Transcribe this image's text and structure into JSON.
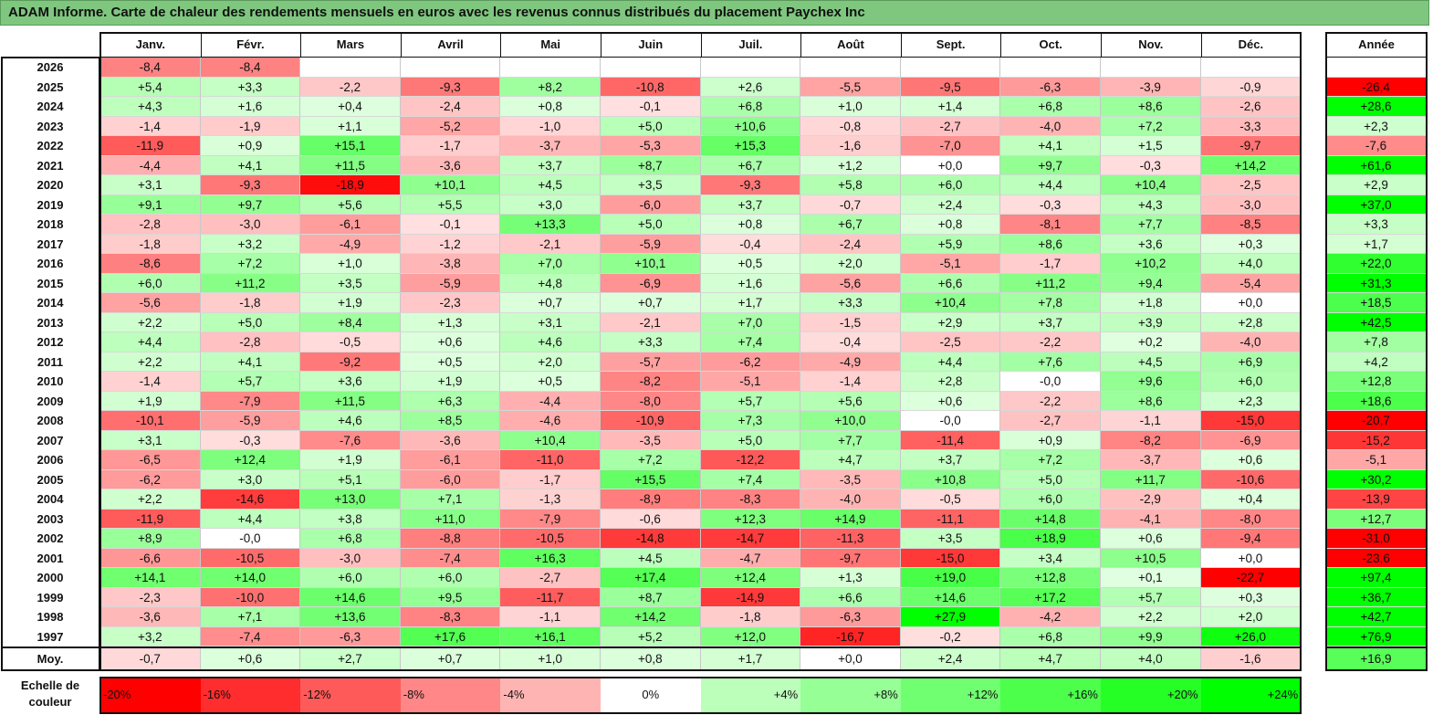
{
  "title": "ADAM Informe. Carte de chaleur des rendements mensuels en euros avec les revenus connus distribués du placement Paychex Inc",
  "colors": {
    "title_bg": "#7fc77f",
    "negative_max": "#ff0000",
    "positive_max": "#00ff00",
    "neutral": "#ffffff"
  },
  "chart_data": {
    "type": "heatmap",
    "title": "ADAM Informe. Carte de chaleur des rendements mensuels en euros avec les revenus connus distribués du placement Paychex Inc",
    "columns": [
      "Janv.",
      "Févr.",
      "Mars",
      "Avril",
      "Mai",
      "Juin",
      "Juil.",
      "Août",
      "Sept.",
      "Oct.",
      "Nov.",
      "Déc."
    ],
    "year_header": "Année",
    "rows": [
      {
        "year": "2026",
        "months": [
          "-8,4",
          "-8,4",
          "",
          "",
          "",
          "",
          "",
          "",
          "",
          "",
          "",
          ""
        ],
        "total": ""
      },
      {
        "year": "2025",
        "months": [
          "+5,4",
          "+3,3",
          "-2,2",
          "-9,3",
          "+8,2",
          "-10,8",
          "+2,6",
          "-5,5",
          "-9,5",
          "-6,3",
          "-3,9",
          "-0,9"
        ],
        "total": "-26,4"
      },
      {
        "year": "2024",
        "months": [
          "+4,3",
          "+1,6",
          "+0,4",
          "-2,4",
          "+0,8",
          "-0,1",
          "+6,8",
          "+1,0",
          "+1,4",
          "+6,8",
          "+8,6",
          "-2,6"
        ],
        "total": "+28,6"
      },
      {
        "year": "2023",
        "months": [
          "-1,4",
          "-1,9",
          "+1,1",
          "-5,2",
          "-1,0",
          "+5,0",
          "+10,6",
          "-0,8",
          "-2,7",
          "-4,0",
          "+7,2",
          "-3,3"
        ],
        "total": "+2,3"
      },
      {
        "year": "2022",
        "months": [
          "-11,9",
          "+0,9",
          "+15,1",
          "-1,7",
          "-3,7",
          "-5,3",
          "+15,3",
          "-1,6",
          "-7,0",
          "+4,1",
          "+1,5",
          "-9,7"
        ],
        "total": "-7,6"
      },
      {
        "year": "2021",
        "months": [
          "-4,4",
          "+4,1",
          "+11,5",
          "-3,6",
          "+3,7",
          "+8,7",
          "+6,7",
          "+1,2",
          "+0,0",
          "+9,7",
          "-0,3",
          "+14,2"
        ],
        "total": "+61,6"
      },
      {
        "year": "2020",
        "months": [
          "+3,1",
          "-9,3",
          "-18,9",
          "+10,1",
          "+4,5",
          "+3,5",
          "-9,3",
          "+5,8",
          "+6,0",
          "+4,4",
          "+10,4",
          "-2,5"
        ],
        "total": "+2,9"
      },
      {
        "year": "2019",
        "months": [
          "+9,1",
          "+9,7",
          "+5,6",
          "+5,5",
          "+3,0",
          "-6,0",
          "+3,7",
          "-0,7",
          "+2,4",
          "-0,3",
          "+4,3",
          "-3,0"
        ],
        "total": "+37,0"
      },
      {
        "year": "2018",
        "months": [
          "-2,8",
          "-3,0",
          "-6,1",
          "-0,1",
          "+13,3",
          "+5,0",
          "+0,8",
          "+6,7",
          "+0,8",
          "-8,1",
          "+7,7",
          "-8,5"
        ],
        "total": "+3,3"
      },
      {
        "year": "2017",
        "months": [
          "-1,8",
          "+3,2",
          "-4,9",
          "-1,2",
          "-2,1",
          "-5,9",
          "-0,4",
          "-2,4",
          "+5,9",
          "+8,6",
          "+3,6",
          "+0,3"
        ],
        "total": "+1,7"
      },
      {
        "year": "2016",
        "months": [
          "-8,6",
          "+7,2",
          "+1,0",
          "-3,8",
          "+7,0",
          "+10,1",
          "+0,5",
          "+2,0",
          "-5,1",
          "-1,7",
          "+10,2",
          "+4,0"
        ],
        "total": "+22,0"
      },
      {
        "year": "2015",
        "months": [
          "+6,0",
          "+11,2",
          "+3,5",
          "-5,9",
          "+4,8",
          "-6,9",
          "+1,6",
          "-5,6",
          "+6,6",
          "+11,2",
          "+9,4",
          "-5,4"
        ],
        "total": "+31,3"
      },
      {
        "year": "2014",
        "months": [
          "-5,6",
          "-1,8",
          "+1,9",
          "-2,3",
          "+0,7",
          "+0,7",
          "+1,7",
          "+3,3",
          "+10,4",
          "+7,8",
          "+1,8",
          "+0,0"
        ],
        "total": "+18,5"
      },
      {
        "year": "2013",
        "months": [
          "+2,2",
          "+5,0",
          "+8,4",
          "+1,3",
          "+3,1",
          "-2,1",
          "+7,0",
          "-1,5",
          "+2,9",
          "+3,7",
          "+3,9",
          "+2,8"
        ],
        "total": "+42,5"
      },
      {
        "year": "2012",
        "months": [
          "+4,4",
          "-2,8",
          "-0,5",
          "+0,6",
          "+4,6",
          "+3,3",
          "+7,4",
          "-0,4",
          "-2,5",
          "-2,2",
          "+0,2",
          "-4,0"
        ],
        "total": "+7,8"
      },
      {
        "year": "2011",
        "months": [
          "+2,2",
          "+4,1",
          "-9,2",
          "+0,5",
          "+2,0",
          "-5,7",
          "-6,2",
          "-4,9",
          "+4,4",
          "+7,6",
          "+4,5",
          "+6,9"
        ],
        "total": "+4,2"
      },
      {
        "year": "2010",
        "months": [
          "-1,4",
          "+5,7",
          "+3,6",
          "+1,9",
          "+0,5",
          "-8,2",
          "-5,1",
          "-1,4",
          "+2,8",
          "-0,0",
          "+9,6",
          "+6,0"
        ],
        "total": "+12,8"
      },
      {
        "year": "2009",
        "months": [
          "+1,9",
          "-7,9",
          "+11,5",
          "+6,3",
          "-4,4",
          "-8,0",
          "+5,7",
          "+5,6",
          "+0,6",
          "-2,2",
          "+8,6",
          "+2,3"
        ],
        "total": "+18,6"
      },
      {
        "year": "2008",
        "months": [
          "-10,1",
          "-5,9",
          "+4,6",
          "+8,5",
          "-4,6",
          "-10,9",
          "+7,3",
          "+10,0",
          "-0,0",
          "-2,7",
          "-1,1",
          "-15,0"
        ],
        "total": "-20,7"
      },
      {
        "year": "2007",
        "months": [
          "+3,1",
          "-0,3",
          "-7,6",
          "-3,6",
          "+10,4",
          "-3,5",
          "+5,0",
          "+7,7",
          "-11,4",
          "+0,9",
          "-8,2",
          "-6,9"
        ],
        "total": "-15,2"
      },
      {
        "year": "2006",
        "months": [
          "-6,5",
          "+12,4",
          "+1,9",
          "-6,1",
          "-11,0",
          "+7,2",
          "-12,2",
          "+4,7",
          "+3,7",
          "+7,2",
          "-3,7",
          "+0,6"
        ],
        "total": "-5,1"
      },
      {
        "year": "2005",
        "months": [
          "-6,2",
          "+3,0",
          "+5,1",
          "-6,0",
          "-1,7",
          "+15,5",
          "+7,4",
          "-3,5",
          "+10,8",
          "+5,0",
          "+11,7",
          "-10,6"
        ],
        "total": "+30,2"
      },
      {
        "year": "2004",
        "months": [
          "+2,2",
          "-14,6",
          "+13,0",
          "+7,1",
          "-1,3",
          "-8,9",
          "-8,3",
          "-4,0",
          "-0,5",
          "+6,0",
          "-2,9",
          "+0,4"
        ],
        "total": "-13,9"
      },
      {
        "year": "2003",
        "months": [
          "-11,9",
          "+4,4",
          "+3,8",
          "+11,0",
          "-7,9",
          "-0,6",
          "+12,3",
          "+14,9",
          "-11,1",
          "+14,8",
          "-4,1",
          "-8,0"
        ],
        "total": "+12,7"
      },
      {
        "year": "2002",
        "months": [
          "+8,9",
          "-0,0",
          "+6,8",
          "-8,8",
          "-10,5",
          "-14,8",
          "-14,7",
          "-11,3",
          "+3,5",
          "+18,9",
          "+0,6",
          "-9,4"
        ],
        "total": "-31,0"
      },
      {
        "year": "2001",
        "months": [
          "-6,6",
          "-10,5",
          "-3,0",
          "-7,4",
          "+16,3",
          "+4,5",
          "-4,7",
          "-9,7",
          "-15,0",
          "+3,4",
          "+10,5",
          "+0,0"
        ],
        "total": "-23,6"
      },
      {
        "year": "2000",
        "months": [
          "+14,1",
          "+14,0",
          "+6,0",
          "+6,0",
          "-2,7",
          "+17,4",
          "+12,4",
          "+1,3",
          "+19,0",
          "+12,8",
          "+0,1",
          "-22,7"
        ],
        "total": "+97,4"
      },
      {
        "year": "1999",
        "months": [
          "-2,3",
          "-10,0",
          "+14,6",
          "+9,5",
          "-11,7",
          "+8,7",
          "-14,9",
          "+6,6",
          "+14,6",
          "+17,2",
          "+5,7",
          "+0,3"
        ],
        "total": "+36,7"
      },
      {
        "year": "1998",
        "months": [
          "-3,6",
          "+7,1",
          "+13,6",
          "-8,3",
          "-1,1",
          "+14,2",
          "-1,8",
          "-6,3",
          "+27,9",
          "-4,2",
          "+2,2",
          "+2,0"
        ],
        "total": "+42,7"
      },
      {
        "year": "1997",
        "months": [
          "+3,2",
          "-7,4",
          "-6,3",
          "+17,6",
          "+16,1",
          "+5,2",
          "+12,0",
          "-16,7",
          "-0,2",
          "+6,8",
          "+9,9",
          "+26,0"
        ],
        "total": "+76,9"
      }
    ],
    "average": {
      "label": "Moy.",
      "months": [
        "-0,7",
        "+0,6",
        "+2,7",
        "+0,7",
        "+1,0",
        "+0,8",
        "+1,7",
        "+0,0",
        "+2,4",
        "+4,7",
        "+4,0",
        "-1,6"
      ],
      "total": "+16,9"
    },
    "scale": {
      "label": "Echelle de couleur",
      "steps": [
        "-20%",
        "-16%",
        "-12%",
        "-8%",
        "-4%",
        "0%",
        "+4%",
        "+8%",
        "+12%",
        "+16%",
        "+20%",
        "+24%"
      ]
    }
  }
}
